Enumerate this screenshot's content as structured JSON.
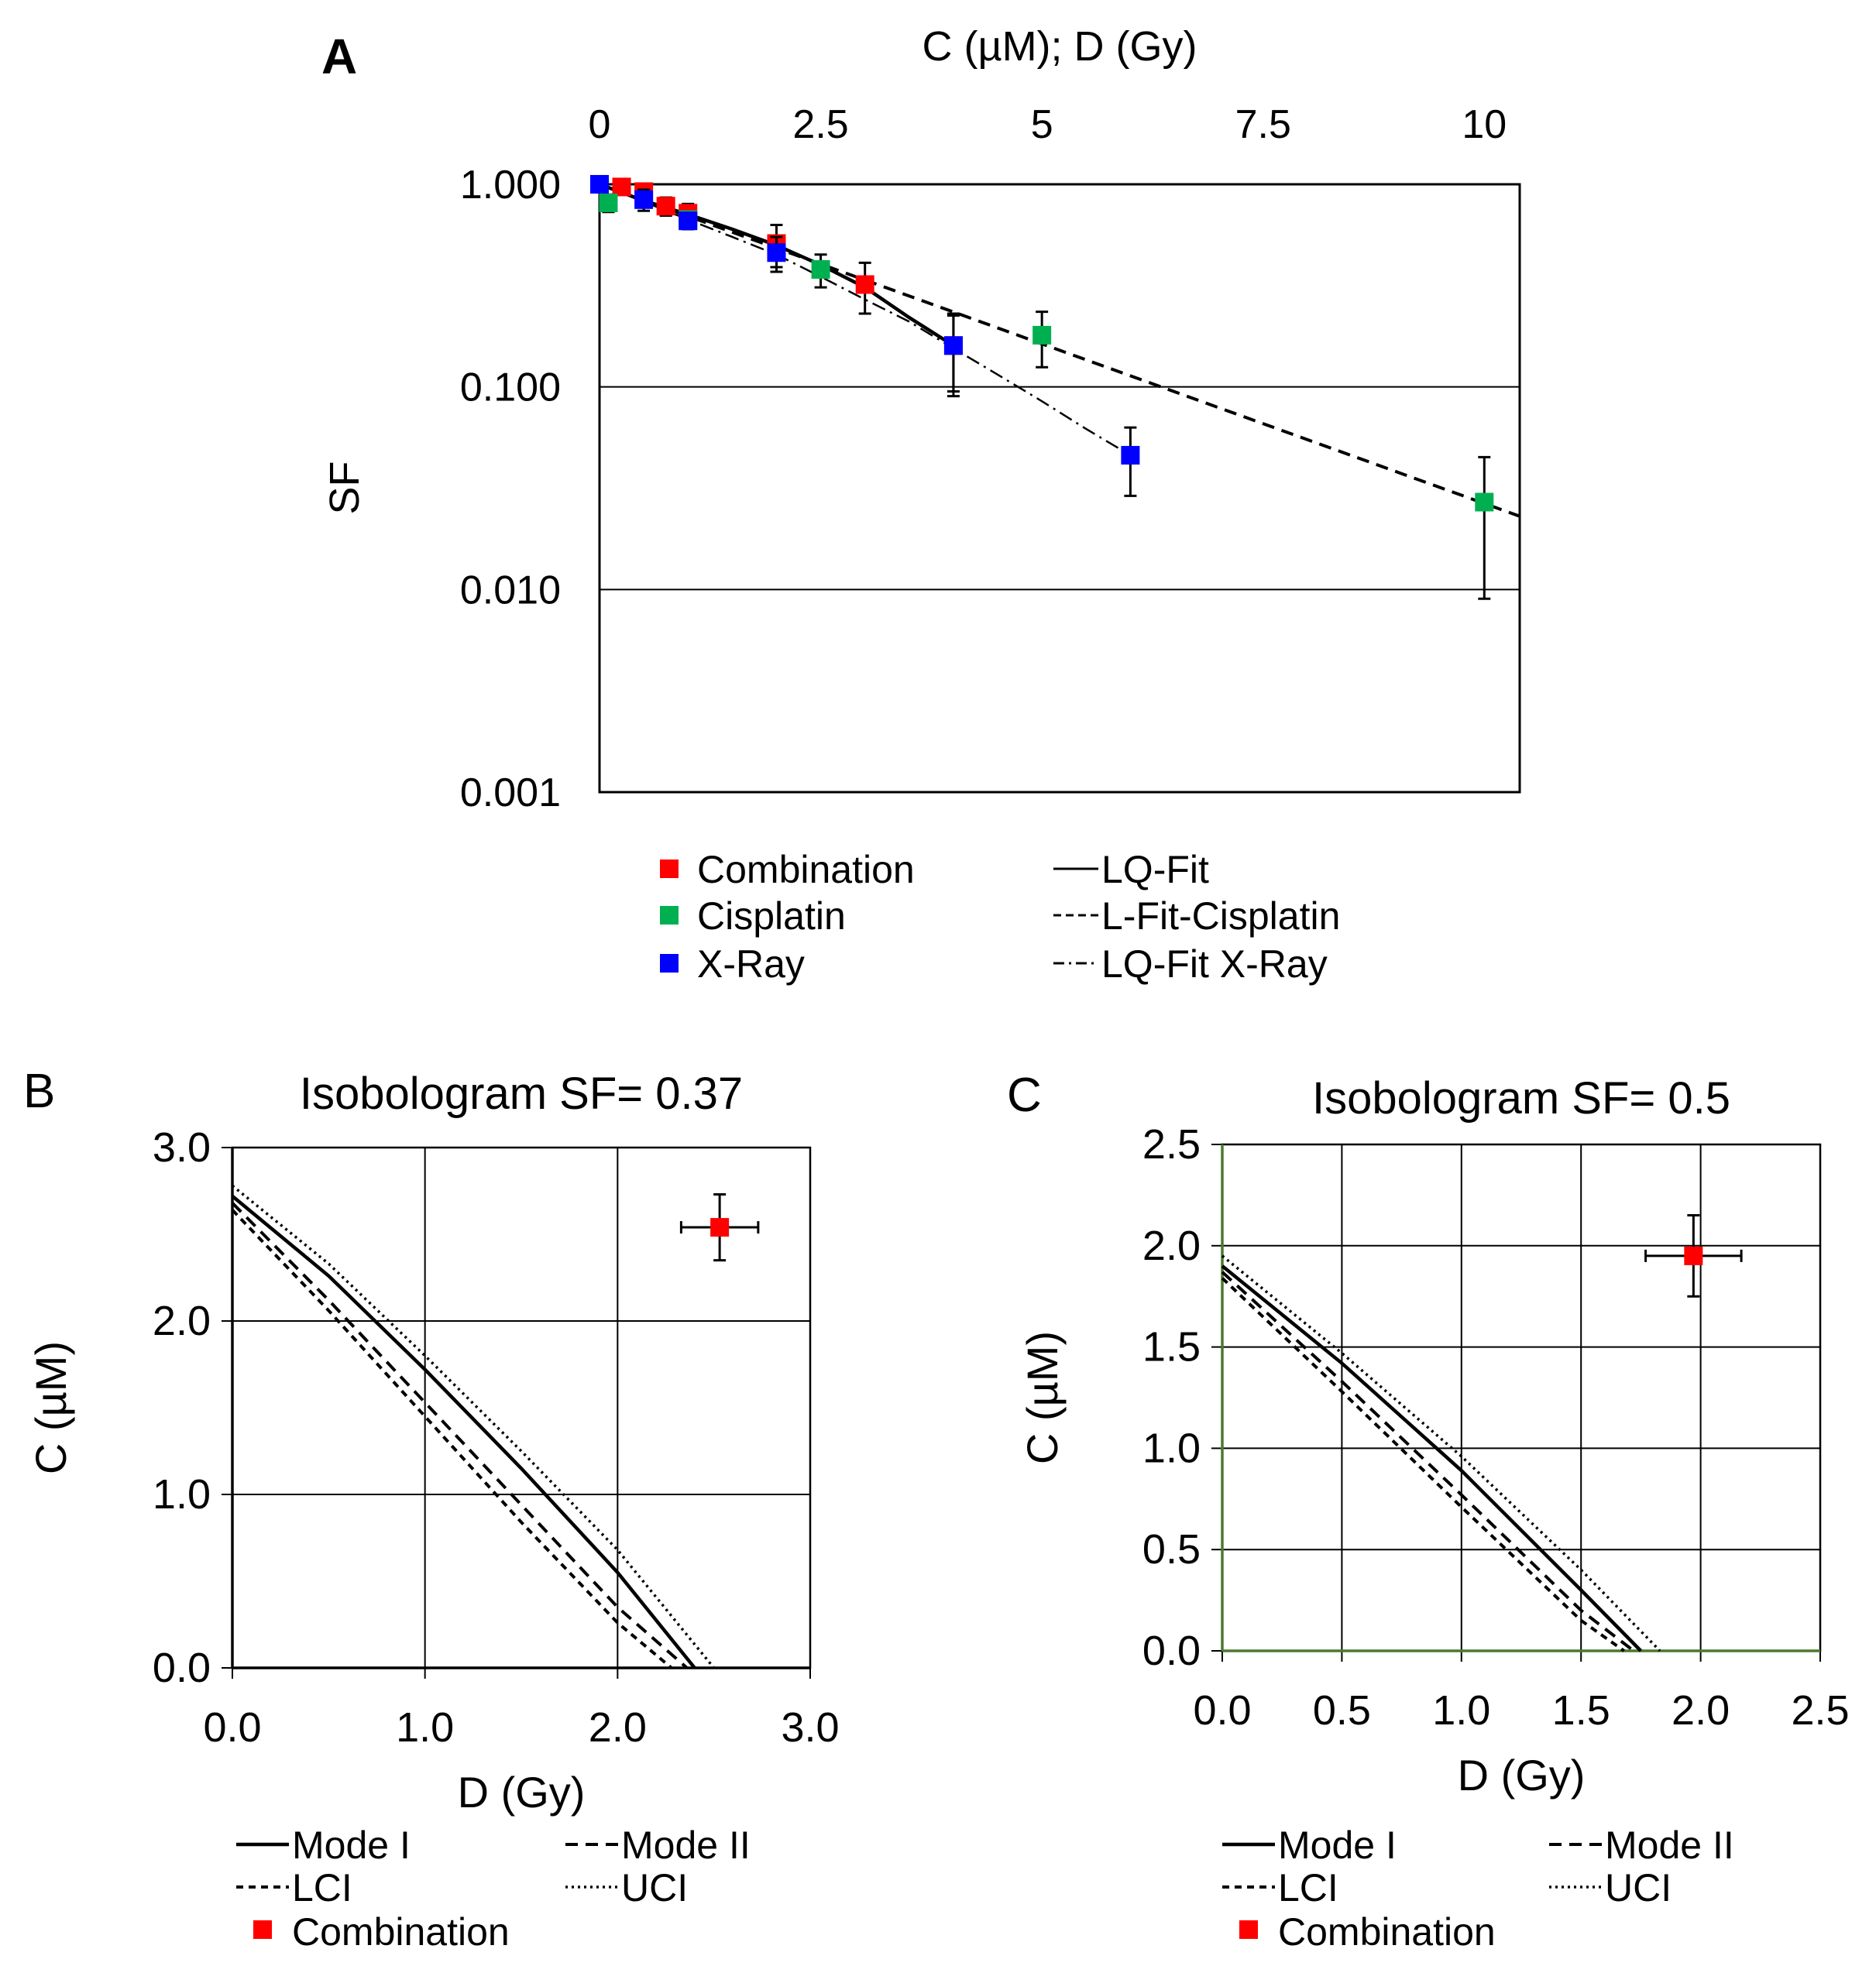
{
  "chart_data": [
    {
      "panel": "A",
      "type": "scatter",
      "title": "",
      "xlabel": "C (µM); D (Gy)",
      "ylabel": "SF",
      "x_ticks": [
        "0",
        "2.5",
        "5",
        "7.5",
        "10"
      ],
      "y_ticks": [
        "0.001",
        "0.010",
        "0.100",
        "1.000"
      ],
      "xlim": [
        0,
        10.4
      ],
      "ylim": [
        0.001,
        1
      ],
      "y_scale": "log",
      "grid": "horizontal",
      "legend_position": "below",
      "series": [
        {
          "name": "Combination",
          "color": "#ff0000",
          "marker": "square",
          "x": [
            0.25,
            0.5,
            0.75,
            1,
            2,
            3,
            4
          ],
          "y": [
            0.97,
            0.92,
            0.78,
            0.72,
            0.51,
            0.32,
            0.16
          ],
          "err": [
            0.04,
            0.06,
            0.08,
            0.08,
            0.12,
            0.09,
            0.07
          ]
        },
        {
          "name": "Cisplatin",
          "color": "#00b050",
          "marker": "square",
          "x": [
            0,
            0.1,
            1,
            2.5,
            5,
            10
          ],
          "y": [
            1.0,
            0.81,
            0.67,
            0.38,
            0.18,
            0.027
          ],
          "err": [
            0.04,
            0.08,
            0.06,
            0.07,
            0.055,
            0.018
          ]
        },
        {
          "name": "X-Ray",
          "color": "#0000ff",
          "marker": "square",
          "x": [
            0,
            0.5,
            1,
            2,
            4,
            6
          ],
          "y": [
            1.0,
            0.84,
            0.66,
            0.46,
            0.16,
            0.046
          ],
          "err": [
            0.04,
            0.1,
            0.06,
            0.09,
            0.065,
            0.017
          ]
        }
      ],
      "fits": [
        {
          "name": "LQ-Fit",
          "style": "solid",
          "x": [
            0,
            0.5,
            1,
            1.5,
            2,
            2.5,
            3,
            3.5,
            4
          ],
          "y": [
            1.0,
            0.83,
            0.71,
            0.6,
            0.5,
            0.4,
            0.31,
            0.22,
            0.16
          ]
        },
        {
          "name": "L-Fit-Cisplatin",
          "style": "dashed",
          "x": [
            0,
            10.4
          ],
          "y": [
            1.0,
            0.023
          ]
        },
        {
          "name": "LQ-Fit X-Ray",
          "style": "dash-dot",
          "x": [
            0,
            0.5,
            1,
            1.5,
            2,
            2.5,
            3,
            3.5,
            4,
            4.5,
            5,
            5.5,
            6
          ],
          "y": [
            1.0,
            0.82,
            0.67,
            0.55,
            0.45,
            0.35,
            0.27,
            0.21,
            0.155,
            0.115,
            0.085,
            0.062,
            0.046
          ]
        }
      ]
    },
    {
      "panel": "B",
      "type": "line",
      "title": "Isobologram SF= 0.37",
      "xlabel": "D (Gy)",
      "ylabel": "C (µM)",
      "x_ticks": [
        "0.0",
        "1.0",
        "2.0",
        "3.0"
      ],
      "y_ticks": [
        "0.0",
        "1.0",
        "2.0",
        "3.0"
      ],
      "xlim": [
        0,
        3
      ],
      "ylim": [
        0,
        3
      ],
      "grid": "both",
      "legend_position": "below",
      "series": [
        {
          "name": "Mode I",
          "style": "solid",
          "x": [
            0,
            0.5,
            1.0,
            1.5,
            2.0,
            2.4
          ],
          "y": [
            2.72,
            2.26,
            1.72,
            1.15,
            0.55,
            0.0
          ]
        },
        {
          "name": "Mode II",
          "style": "dashed",
          "x": [
            0,
            0.5,
            1.0,
            1.5,
            2.0,
            2.36
          ],
          "y": [
            2.68,
            2.12,
            1.53,
            0.94,
            0.35,
            0.0
          ]
        },
        {
          "name": "LCI",
          "style": "dashed-fine",
          "x": [
            0,
            0.5,
            1.0,
            1.5,
            2.0,
            2.28
          ],
          "y": [
            2.64,
            2.06,
            1.45,
            0.84,
            0.26,
            0.0
          ]
        },
        {
          "name": "UCI",
          "style": "dotted",
          "x": [
            0,
            0.5,
            1.0,
            1.5,
            2.0,
            2.5
          ],
          "y": [
            2.78,
            2.33,
            1.8,
            1.25,
            0.68,
            0.0
          ]
        }
      ],
      "points": [
        {
          "name": "Combination",
          "color": "#ff0000",
          "x": 2.53,
          "y": 2.54,
          "xerr": 0.2,
          "yerr": 0.19
        }
      ]
    },
    {
      "panel": "C",
      "type": "line",
      "title": "Isobologram SF= 0.5",
      "xlabel": "D (Gy)",
      "ylabel": "C (µM)",
      "x_ticks": [
        "0.0",
        "0.5",
        "1.0",
        "1.5",
        "2.0",
        "2.5"
      ],
      "y_ticks": [
        "0.0",
        "0.5",
        "1.0",
        "1.5",
        "2.0",
        "2.5"
      ],
      "xlim": [
        0,
        2.5
      ],
      "ylim": [
        0,
        2.5
      ],
      "grid": "both",
      "legend_position": "below",
      "series": [
        {
          "name": "Mode I",
          "style": "solid",
          "x": [
            0,
            0.5,
            1.0,
            1.5,
            1.75
          ],
          "y": [
            1.9,
            1.42,
            0.89,
            0.3,
            0.0
          ]
        },
        {
          "name": "Mode II",
          "style": "dashed",
          "x": [
            0,
            0.5,
            1.0,
            1.5,
            1.72
          ],
          "y": [
            1.87,
            1.33,
            0.77,
            0.2,
            0.0
          ]
        },
        {
          "name": "LCI",
          "style": "dashed-fine",
          "x": [
            0,
            0.5,
            1.0,
            1.5,
            1.68
          ],
          "y": [
            1.84,
            1.28,
            0.71,
            0.15,
            0.0
          ]
        },
        {
          "name": "UCI",
          "style": "dotted",
          "x": [
            0,
            0.5,
            1.0,
            1.5,
            1.83
          ],
          "y": [
            1.95,
            1.47,
            0.96,
            0.4,
            0.0
          ]
        }
      ],
      "points": [
        {
          "name": "Combination",
          "color": "#ff0000",
          "x": 1.97,
          "y": 1.95,
          "xerr": 0.2,
          "yerr": 0.2
        }
      ]
    }
  ]
}
